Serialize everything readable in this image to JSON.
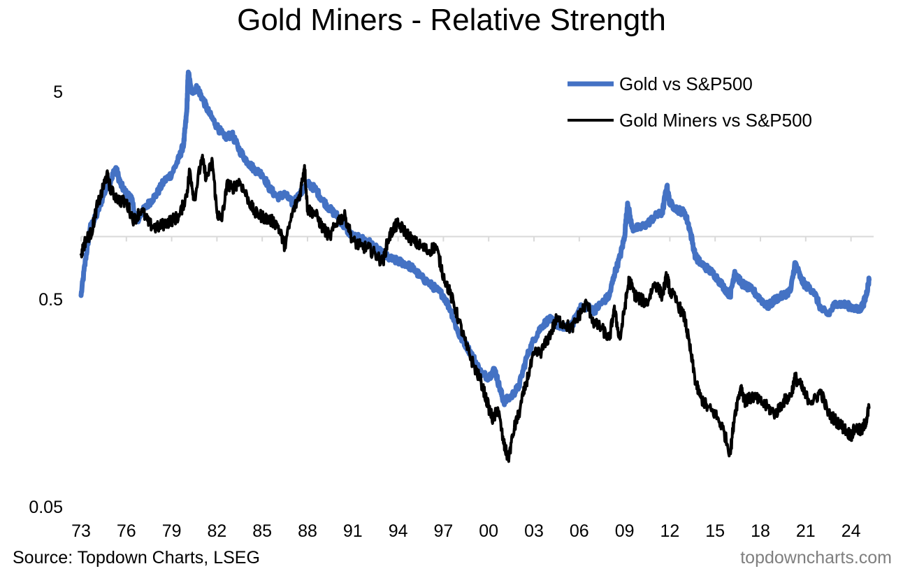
{
  "title": "Gold Miners - Relative Strength",
  "source": "Source: Topdown Charts, LSEG",
  "watermark": "topdowncharts.com",
  "chart_data": {
    "type": "line",
    "title": "Gold Miners - Relative Strength",
    "y_scale": "log",
    "ylim": [
      0.05,
      9
    ],
    "y_ticks": [
      {
        "value": 5,
        "label": "5"
      },
      {
        "value": 0.5,
        "label": "0.5"
      },
      {
        "value": 0.05,
        "label": "0.05"
      }
    ],
    "reference_line": {
      "y": 1.0
    },
    "xlim": [
      1973,
      2025.5
    ],
    "x_ticks": [
      {
        "value": 1973,
        "label": "73"
      },
      {
        "value": 1976,
        "label": "76"
      },
      {
        "value": 1979,
        "label": "79"
      },
      {
        "value": 1982,
        "label": "82"
      },
      {
        "value": 1985,
        "label": "85"
      },
      {
        "value": 1988,
        "label": "88"
      },
      {
        "value": 1991,
        "label": "91"
      },
      {
        "value": 1994,
        "label": "94"
      },
      {
        "value": 1997,
        "label": "97"
      },
      {
        "value": 2000,
        "label": "00"
      },
      {
        "value": 2003,
        "label": "03"
      },
      {
        "value": 2006,
        "label": "06"
      },
      {
        "value": 2009,
        "label": "09"
      },
      {
        "value": 2012,
        "label": "12"
      },
      {
        "value": 2015,
        "label": "15"
      },
      {
        "value": 2018,
        "label": "18"
      },
      {
        "value": 2021,
        "label": "21"
      },
      {
        "value": 2024,
        "label": "24"
      }
    ],
    "legend_position": "top-right",
    "series": [
      {
        "name": "Gold vs S&P500",
        "color": "#4472C4",
        "points": [
          [
            1973.0,
            0.52
          ],
          [
            1973.3,
            0.78
          ],
          [
            1973.6,
            1.1
          ],
          [
            1974.0,
            1.25
          ],
          [
            1974.5,
            1.6
          ],
          [
            1975.0,
            1.9
          ],
          [
            1975.3,
            2.15
          ],
          [
            1975.6,
            1.8
          ],
          [
            1976.0,
            1.6
          ],
          [
            1976.3,
            1.55
          ],
          [
            1976.7,
            1.18
          ],
          [
            1977.0,
            1.3
          ],
          [
            1977.5,
            1.45
          ],
          [
            1978.0,
            1.6
          ],
          [
            1978.5,
            1.85
          ],
          [
            1979.0,
            2.0
          ],
          [
            1979.5,
            2.4
          ],
          [
            1979.8,
            2.8
          ],
          [
            1980.0,
            4.0
          ],
          [
            1980.1,
            6.2
          ],
          [
            1980.3,
            5.0
          ],
          [
            1980.7,
            5.2
          ],
          [
            1981.0,
            4.7
          ],
          [
            1981.5,
            3.9
          ],
          [
            1982.0,
            3.4
          ],
          [
            1982.5,
            3.0
          ],
          [
            1983.0,
            3.1
          ],
          [
            1983.5,
            2.6
          ],
          [
            1984.0,
            2.3
          ],
          [
            1984.5,
            2.1
          ],
          [
            1985.0,
            2.0
          ],
          [
            1985.5,
            1.7
          ],
          [
            1986.0,
            1.55
          ],
          [
            1986.5,
            1.6
          ],
          [
            1987.0,
            1.45
          ],
          [
            1987.5,
            1.6
          ],
          [
            1988.0,
            1.8
          ],
          [
            1988.5,
            1.7
          ],
          [
            1989.0,
            1.5
          ],
          [
            1989.5,
            1.35
          ],
          [
            1990.0,
            1.25
          ],
          [
            1990.5,
            1.1
          ],
          [
            1991.0,
            1.0
          ],
          [
            1991.5,
            0.98
          ],
          [
            1992.0,
            0.95
          ],
          [
            1992.5,
            0.88
          ],
          [
            1993.0,
            0.82
          ],
          [
            1993.5,
            0.78
          ],
          [
            1994.0,
            0.76
          ],
          [
            1994.5,
            0.74
          ],
          [
            1995.0,
            0.7
          ],
          [
            1995.5,
            0.64
          ],
          [
            1996.0,
            0.6
          ],
          [
            1996.5,
            0.56
          ],
          [
            1997.0,
            0.52
          ],
          [
            1997.5,
            0.44
          ],
          [
            1998.0,
            0.34
          ],
          [
            1998.5,
            0.3
          ],
          [
            1999.0,
            0.26
          ],
          [
            1999.5,
            0.22
          ],
          [
            2000.0,
            0.21
          ],
          [
            2000.4,
            0.23
          ],
          [
            2000.7,
            0.19
          ],
          [
            2001.0,
            0.16
          ],
          [
            2001.5,
            0.17
          ],
          [
            2002.0,
            0.19
          ],
          [
            2002.5,
            0.26
          ],
          [
            2003.0,
            0.32
          ],
          [
            2003.5,
            0.37
          ],
          [
            2004.0,
            0.4
          ],
          [
            2004.5,
            0.38
          ],
          [
            2005.0,
            0.36
          ],
          [
            2005.5,
            0.37
          ],
          [
            2006.0,
            0.45
          ],
          [
            2006.5,
            0.46
          ],
          [
            2007.0,
            0.44
          ],
          [
            2007.5,
            0.48
          ],
          [
            2008.0,
            0.52
          ],
          [
            2008.3,
            0.65
          ],
          [
            2008.7,
            0.8
          ],
          [
            2009.0,
            1.0
          ],
          [
            2009.2,
            1.45
          ],
          [
            2009.5,
            1.1
          ],
          [
            2010.0,
            1.1
          ],
          [
            2010.5,
            1.15
          ],
          [
            2011.0,
            1.25
          ],
          [
            2011.5,
            1.3
          ],
          [
            2011.8,
            1.75
          ],
          [
            2012.0,
            1.45
          ],
          [
            2012.5,
            1.35
          ],
          [
            2013.0,
            1.3
          ],
          [
            2013.3,
            1.1
          ],
          [
            2013.7,
            0.8
          ],
          [
            2014.0,
            0.75
          ],
          [
            2014.5,
            0.7
          ],
          [
            2015.0,
            0.65
          ],
          [
            2015.5,
            0.58
          ],
          [
            2016.0,
            0.52
          ],
          [
            2016.3,
            0.68
          ],
          [
            2016.7,
            0.6
          ],
          [
            2017.0,
            0.58
          ],
          [
            2017.5,
            0.55
          ],
          [
            2018.0,
            0.5
          ],
          [
            2018.5,
            0.46
          ],
          [
            2019.0,
            0.5
          ],
          [
            2019.5,
            0.52
          ],
          [
            2020.0,
            0.55
          ],
          [
            2020.3,
            0.75
          ],
          [
            2020.7,
            0.62
          ],
          [
            2021.0,
            0.58
          ],
          [
            2021.5,
            0.55
          ],
          [
            2022.0,
            0.45
          ],
          [
            2022.5,
            0.42
          ],
          [
            2023.0,
            0.48
          ],
          [
            2023.5,
            0.47
          ],
          [
            2024.0,
            0.46
          ],
          [
            2024.5,
            0.44
          ],
          [
            2024.8,
            0.47
          ],
          [
            2025.0,
            0.52
          ],
          [
            2025.2,
            0.62
          ]
        ]
      },
      {
        "name": "Gold Miners vs S&P500",
        "color": "#000000",
        "points": [
          [
            1973.0,
            0.82
          ],
          [
            1973.3,
            0.96
          ],
          [
            1973.7,
            1.05
          ],
          [
            1974.0,
            1.35
          ],
          [
            1974.4,
            1.65
          ],
          [
            1974.7,
            2.0
          ],
          [
            1975.0,
            1.65
          ],
          [
            1975.5,
            1.5
          ],
          [
            1976.0,
            1.45
          ],
          [
            1976.5,
            1.2
          ],
          [
            1977.0,
            1.35
          ],
          [
            1977.5,
            1.15
          ],
          [
            1978.0,
            1.1
          ],
          [
            1978.5,
            1.15
          ],
          [
            1979.0,
            1.2
          ],
          [
            1979.5,
            1.25
          ],
          [
            1980.0,
            1.6
          ],
          [
            1980.2,
            2.1
          ],
          [
            1980.5,
            1.5
          ],
          [
            1981.0,
            2.4
          ],
          [
            1981.3,
            1.9
          ],
          [
            1981.7,
            2.3
          ],
          [
            1982.0,
            1.3
          ],
          [
            1982.3,
            1.2
          ],
          [
            1982.7,
            1.8
          ],
          [
            1983.0,
            1.7
          ],
          [
            1983.5,
            1.85
          ],
          [
            1984.0,
            1.55
          ],
          [
            1984.5,
            1.3
          ],
          [
            1985.0,
            1.25
          ],
          [
            1985.5,
            1.2
          ],
          [
            1986.0,
            1.15
          ],
          [
            1986.5,
            0.9
          ],
          [
            1987.0,
            1.3
          ],
          [
            1987.5,
            1.6
          ],
          [
            1987.8,
            2.2
          ],
          [
            1988.0,
            1.35
          ],
          [
            1988.5,
            1.3
          ],
          [
            1989.0,
            1.1
          ],
          [
            1989.5,
            1.0
          ],
          [
            1990.0,
            1.2
          ],
          [
            1990.5,
            1.25
          ],
          [
            1991.0,
            0.95
          ],
          [
            1991.5,
            0.9
          ],
          [
            1992.0,
            0.88
          ],
          [
            1992.5,
            0.82
          ],
          [
            1993.0,
            0.75
          ],
          [
            1993.3,
            0.95
          ],
          [
            1993.7,
            1.1
          ],
          [
            1994.0,
            1.15
          ],
          [
            1994.5,
            1.05
          ],
          [
            1995.0,
            0.95
          ],
          [
            1995.5,
            0.9
          ],
          [
            1996.0,
            0.85
          ],
          [
            1996.5,
            0.9
          ],
          [
            1997.0,
            0.65
          ],
          [
            1997.5,
            0.52
          ],
          [
            1998.0,
            0.4
          ],
          [
            1998.5,
            0.3
          ],
          [
            1999.0,
            0.24
          ],
          [
            1999.5,
            0.2
          ],
          [
            2000.0,
            0.15
          ],
          [
            2000.3,
            0.13
          ],
          [
            2000.6,
            0.15
          ],
          [
            2001.0,
            0.1
          ],
          [
            2001.3,
            0.085
          ],
          [
            2001.7,
            0.12
          ],
          [
            2002.0,
            0.14
          ],
          [
            2002.5,
            0.2
          ],
          [
            2003.0,
            0.27
          ],
          [
            2003.5,
            0.28
          ],
          [
            2004.0,
            0.33
          ],
          [
            2004.5,
            0.4
          ],
          [
            2005.0,
            0.38
          ],
          [
            2005.5,
            0.36
          ],
          [
            2006.0,
            0.42
          ],
          [
            2006.5,
            0.48
          ],
          [
            2007.0,
            0.38
          ],
          [
            2007.5,
            0.36
          ],
          [
            2008.0,
            0.32
          ],
          [
            2008.3,
            0.45
          ],
          [
            2008.7,
            0.32
          ],
          [
            2009.0,
            0.45
          ],
          [
            2009.3,
            0.62
          ],
          [
            2009.7,
            0.52
          ],
          [
            2010.0,
            0.5
          ],
          [
            2010.5,
            0.48
          ],
          [
            2011.0,
            0.6
          ],
          [
            2011.5,
            0.52
          ],
          [
            2011.8,
            0.65
          ],
          [
            2012.0,
            0.55
          ],
          [
            2012.5,
            0.48
          ],
          [
            2013.0,
            0.4
          ],
          [
            2013.3,
            0.3
          ],
          [
            2013.7,
            0.2
          ],
          [
            2014.0,
            0.17
          ],
          [
            2014.5,
            0.15
          ],
          [
            2015.0,
            0.14
          ],
          [
            2015.5,
            0.12
          ],
          [
            2016.0,
            0.09
          ],
          [
            2016.3,
            0.14
          ],
          [
            2016.7,
            0.19
          ],
          [
            2017.0,
            0.16
          ],
          [
            2017.5,
            0.17
          ],
          [
            2018.0,
            0.16
          ],
          [
            2018.5,
            0.15
          ],
          [
            2019.0,
            0.14
          ],
          [
            2019.5,
            0.16
          ],
          [
            2020.0,
            0.17
          ],
          [
            2020.3,
            0.21
          ],
          [
            2020.7,
            0.19
          ],
          [
            2021.0,
            0.17
          ],
          [
            2021.5,
            0.16
          ],
          [
            2022.0,
            0.18
          ],
          [
            2022.5,
            0.14
          ],
          [
            2023.0,
            0.13
          ],
          [
            2023.5,
            0.12
          ],
          [
            2024.0,
            0.11
          ],
          [
            2024.3,
            0.12
          ],
          [
            2024.7,
            0.115
          ],
          [
            2025.0,
            0.13
          ],
          [
            2025.2,
            0.15
          ]
        ]
      }
    ]
  }
}
